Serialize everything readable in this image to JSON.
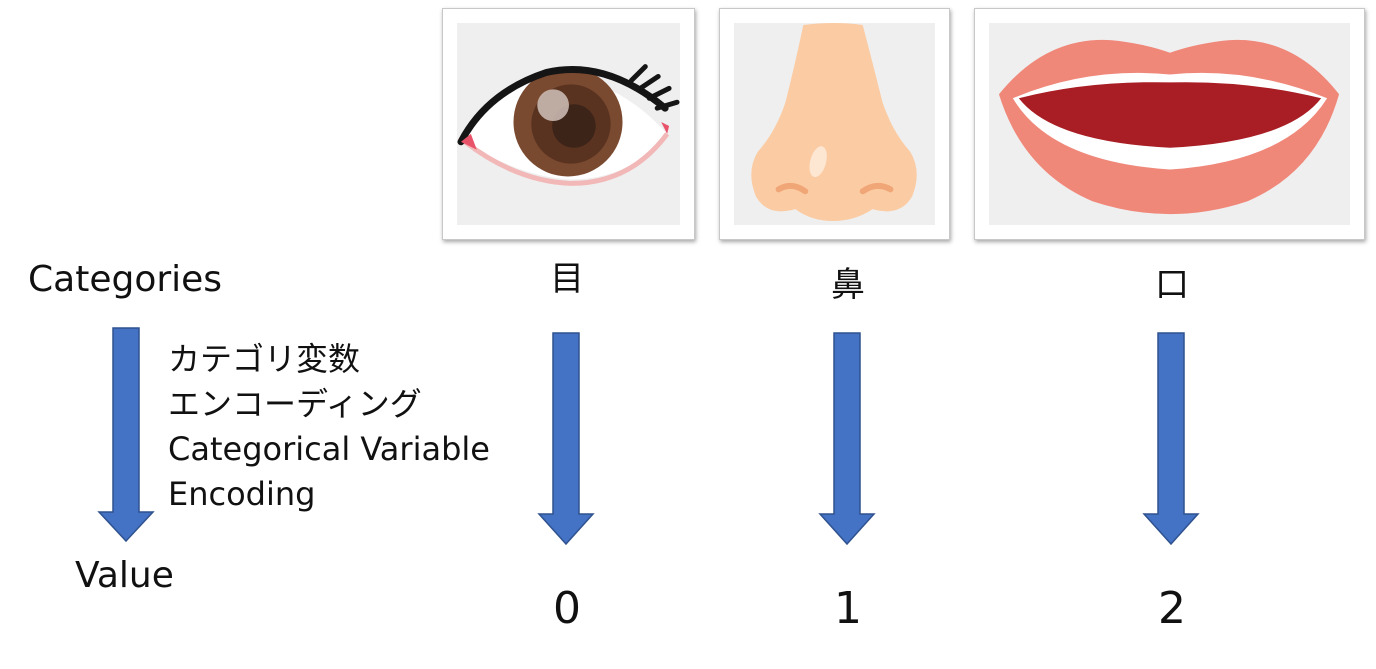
{
  "labels": {
    "categories": "Categories",
    "value": "Value"
  },
  "encoding": {
    "line1": "カテゴリ変数",
    "line2": "エンコーディング",
    "line3": "Categorical Variable",
    "line4": "Encoding"
  },
  "items": [
    {
      "category": "目",
      "value": "0",
      "icon": "eye-icon"
    },
    {
      "category": "鼻",
      "value": "1",
      "icon": "nose-icon"
    },
    {
      "category": "口",
      "value": "2",
      "icon": "mouth-icon"
    }
  ],
  "colors": {
    "arrow_fill": "#4472c4",
    "arrow_stroke": "#2f528f",
    "image_bg": "#efefef"
  }
}
